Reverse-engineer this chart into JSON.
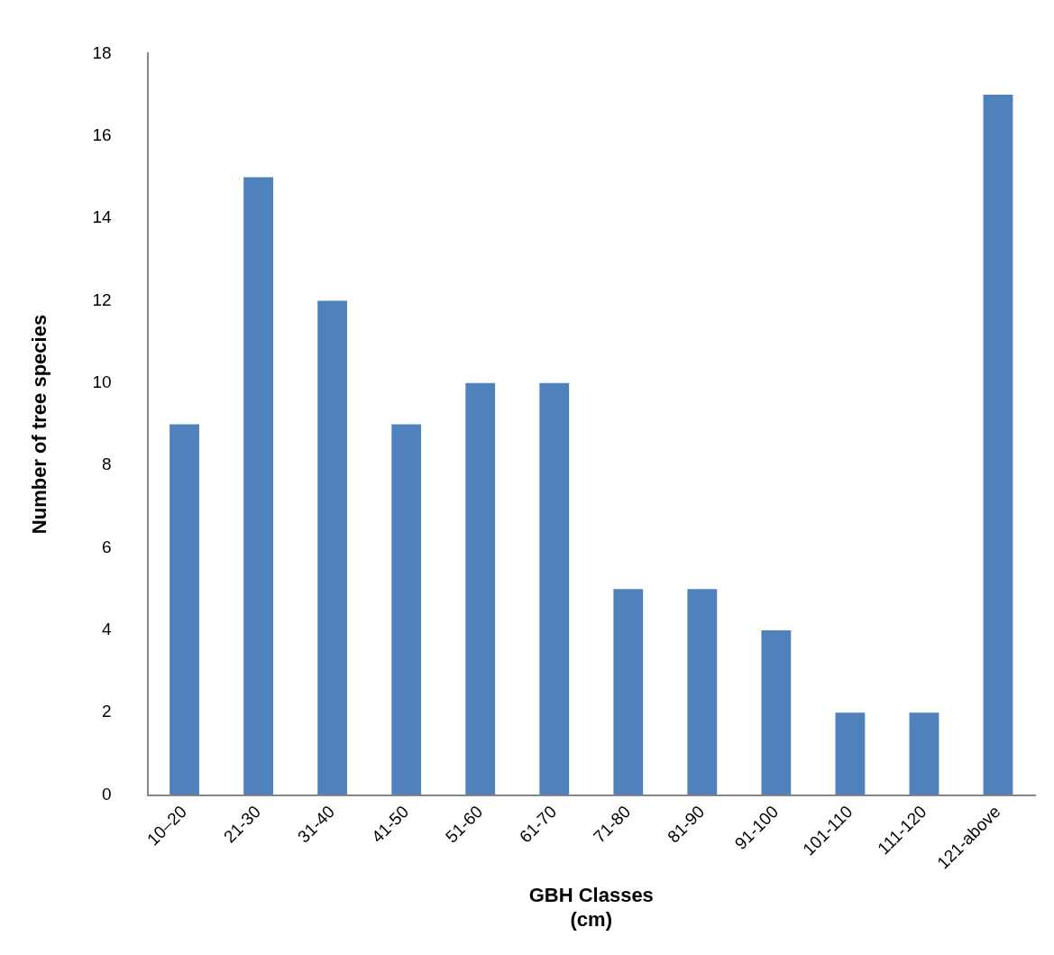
{
  "chart_data": {
    "type": "bar",
    "xlabel": "GBH Classes\n(cm)",
    "ylabel": "Number of tree species",
    "categories": [
      "10–20",
      "21-30",
      "31-40",
      "41-50",
      "51-60",
      "61-70",
      "71-80",
      "81-90",
      "91-100",
      "101-110",
      "111-120",
      "121-above"
    ],
    "values": [
      9,
      15,
      12,
      9,
      10,
      10,
      5,
      5,
      4,
      2,
      2,
      17
    ],
    "color": "#4f81bd",
    "ylim": [
      0,
      18
    ],
    "yticks": [
      0,
      2,
      4,
      6,
      8,
      10,
      12,
      14,
      16,
      18
    ],
    "grid": false,
    "legend": false
  }
}
